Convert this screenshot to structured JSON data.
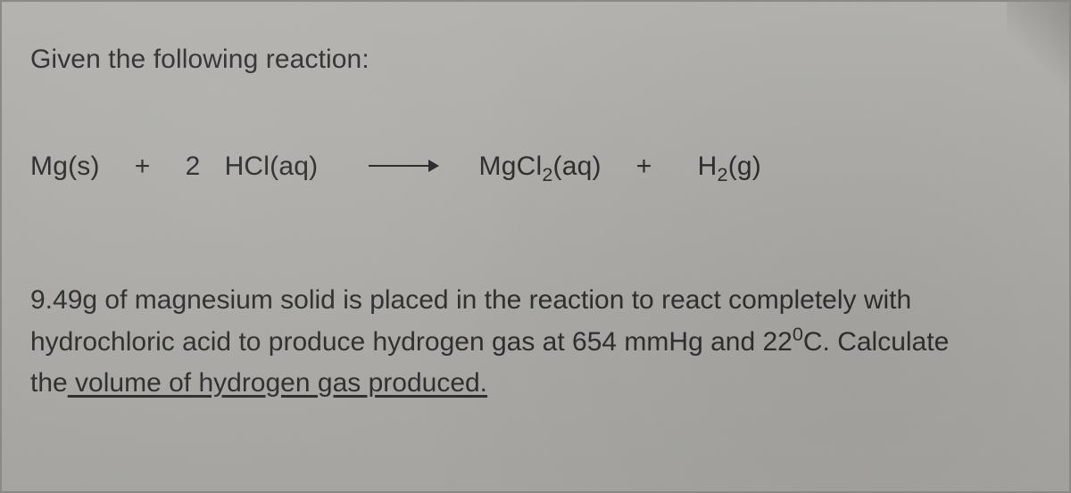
{
  "background_color": "#adaca8",
  "text_color": "#2e2e2e",
  "font_family": "Segoe UI",
  "intro_fontsize": 30,
  "equation_fontsize": 30,
  "question_fontsize": 30,
  "intro": "Given the following reaction:",
  "equation": {
    "lhs_1": "Mg(s)",
    "plus": "+",
    "coeff": "2",
    "lhs_2_a": "HCl(aq)",
    "rhs_1_a": "MgCl",
    "rhs_1_sub": "2",
    "rhs_1_b": "(aq)",
    "rhs_2_a": "H",
    "rhs_2_sub": "2",
    "rhs_2_b": "(g)"
  },
  "question": {
    "line1": "9.49g of magnesium solid is placed in the reaction to react completely with",
    "line2_a": "hydrochloric acid to produce hydrogen gas at 654 mmHg and 22",
    "deg_sup": "0",
    "line2_b": "C. Calculate",
    "line3_pre": "the",
    "line3_u": " volume of hydrogen gas produced."
  },
  "values": {
    "mass_g": 9.49,
    "pressure_mmHg": 654,
    "temp_C": 22
  }
}
